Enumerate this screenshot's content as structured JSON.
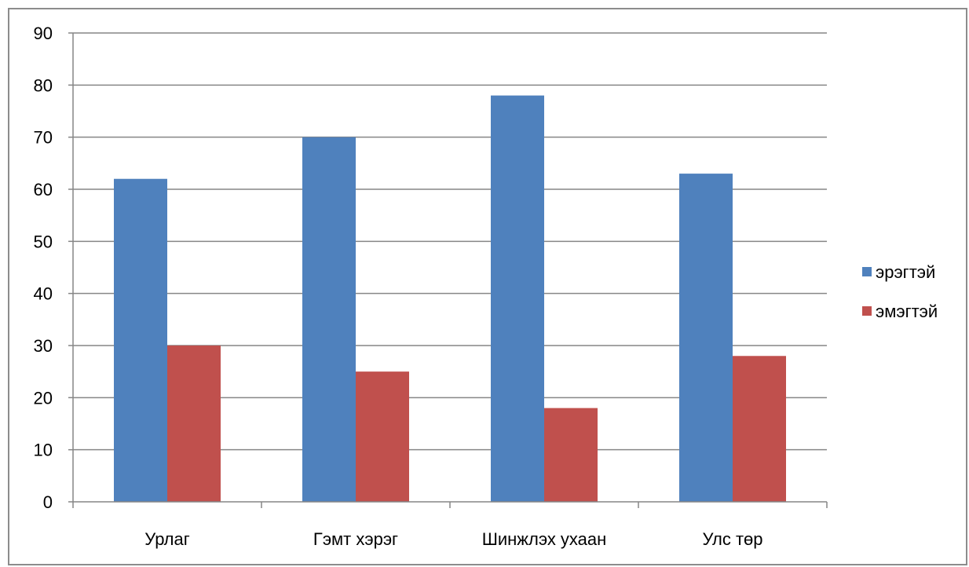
{
  "chart_data": {
    "type": "bar",
    "categories": [
      "Урлаг",
      "Гэмт хэрэг",
      "Шинжлэх ухаан",
      "Улс төр"
    ],
    "series": [
      {
        "name": "эрэгтэй",
        "values": [
          62,
          70,
          78,
          63
        ],
        "color": "#4F81BD"
      },
      {
        "name": "эмэгтэй",
        "values": [
          30,
          25,
          18,
          28
        ],
        "color": "#C0504D"
      }
    ],
    "title": "",
    "xlabel": "",
    "ylabel": "",
    "ylim": [
      0,
      90
    ],
    "yticks": [
      0,
      10,
      20,
      30,
      40,
      50,
      60,
      70,
      80,
      90
    ],
    "grid": true,
    "legend_position": "right"
  }
}
